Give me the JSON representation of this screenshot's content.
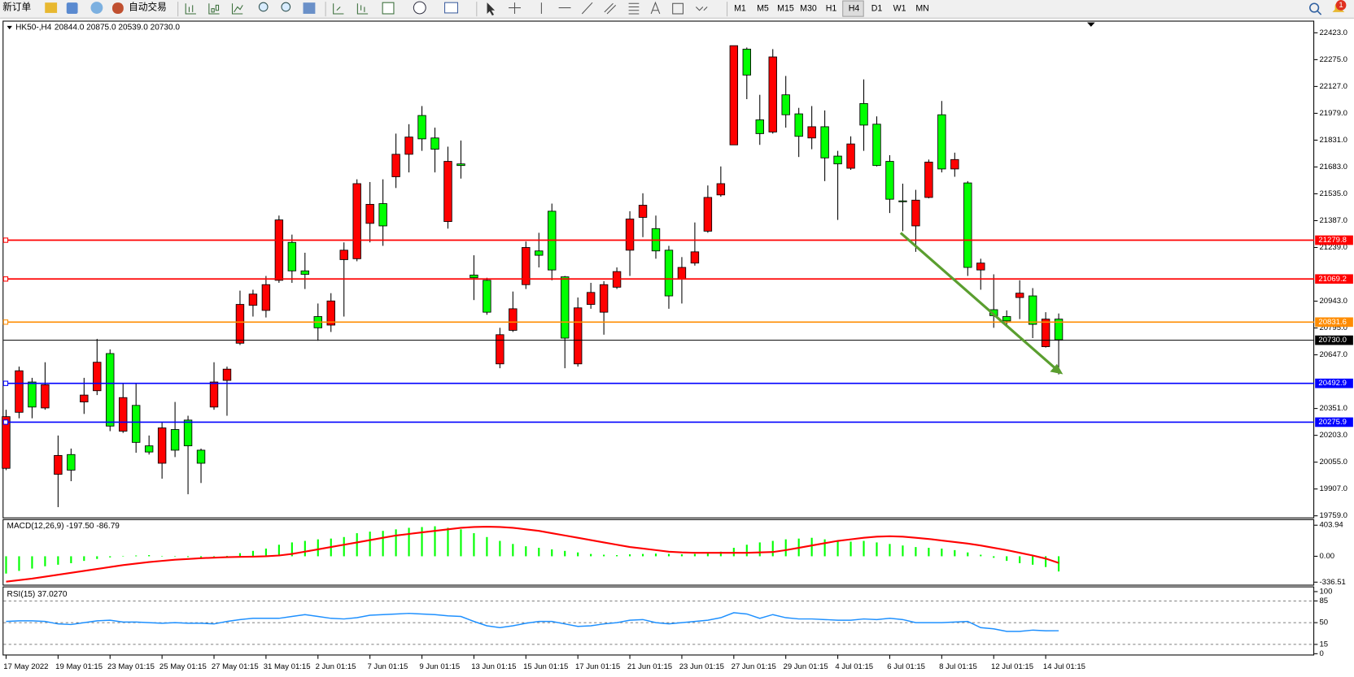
{
  "toolbar": {
    "new_order": "新订单",
    "auto_trading": "自动交易",
    "timeframes": [
      "M1",
      "M5",
      "M15",
      "M30",
      "H1",
      "H4",
      "D1",
      "W1",
      "MN"
    ],
    "notification_count": 1
  },
  "chart_data": [
    {
      "type": "candlestick",
      "title": "HK50-,H4",
      "subtitle": "20844.0 20875.0 20539.0 20730.0",
      "up_color": "#ff0000",
      "down_color": "#00ff00",
      "categories": [
        "17 May 2022",
        null,
        null,
        null,
        "19 May 01:15",
        null,
        null,
        null,
        "23 May 01:15",
        null,
        null,
        null,
        "25 May 01:15",
        null,
        null,
        null,
        "27 May 01:15",
        null,
        null,
        null,
        "31 May 01:15",
        null,
        null,
        null,
        "2 Jun 01:15",
        null,
        null,
        null,
        "7 Jun 01:15",
        null,
        null,
        null,
        "9 Jun 01:15",
        null,
        null,
        null,
        "13 Jun 01:15",
        null,
        null,
        null,
        "15 Jun 01:15",
        null,
        null,
        null,
        "17 Jun 01:15",
        null,
        null,
        null,
        "21 Jun 01:15",
        null,
        null,
        null,
        "23 Jun 01:15",
        null,
        null,
        null,
        "27 Jun 01:15",
        null,
        null,
        null,
        "29 Jun 01:15",
        null,
        null,
        null,
        "4 Jul 01:15",
        null,
        null,
        null,
        "6 Jul 01:15",
        null,
        null,
        null,
        "8 Jul 01:15",
        null,
        null,
        null,
        "12 Jul 01:15",
        null,
        null,
        null,
        "14 Jul 01:15",
        null
      ],
      "open": [
        20021,
        20330,
        20497,
        20354,
        19988,
        20097,
        20387,
        20449,
        20654,
        20226,
        20368,
        20145,
        20049,
        20235,
        20287,
        20121,
        20359,
        20506,
        20711,
        20920,
        20892,
        21058,
        21267,
        21110,
        20858,
        20811,
        21172,
        21177,
        21372,
        21481,
        21629,
        21753,
        21967,
        21843,
        21382,
        21700,
        21087,
        21058,
        20597,
        20782,
        21034,
        21220,
        21439,
        21077,
        20597,
        20925,
        20882,
        21020,
        21224,
        21405,
        21343,
        21224,
        21067,
        21153,
        21329,
        21529,
        21805,
        22333,
        21943,
        21876,
        22081,
        21976,
        21843,
        21905,
        21743,
        21676,
        22033,
        21919,
        21714,
        21496,
        21358,
        21515,
        21971,
        21672,
        21595,
        21115,
        20896,
        20858,
        20963,
        20972,
        20692,
        20844
      ],
      "high": [
        20344,
        20582,
        20520,
        20606,
        20202,
        20130,
        20520,
        20735,
        20677,
        20487,
        20487,
        20202,
        20273,
        20387,
        20311,
        20130,
        20606,
        20582,
        21001,
        21006,
        21082,
        21415,
        21310,
        21210,
        20930,
        20987,
        21267,
        21615,
        21600,
        21615,
        21867,
        21919,
        22019,
        21900,
        21795,
        21829,
        21196,
        21072,
        20796,
        20996,
        21272,
        21320,
        21481,
        21082,
        20963,
        21044,
        21053,
        21129,
        21439,
        21538,
        21415,
        21248,
        21186,
        21377,
        21581,
        21686,
        22352,
        22342,
        22081,
        22333,
        22185,
        22009,
        22019,
        21995,
        21772,
        21852,
        22166,
        21962,
        21748,
        21591,
        21557,
        21724,
        22047,
        21762,
        21605,
        21177,
        21091,
        20892,
        21058,
        21015,
        20882,
        20875
      ],
      "low": [
        20011,
        20297,
        20297,
        20344,
        19807,
        19950,
        20321,
        20425,
        20226,
        20216,
        20107,
        20097,
        19964,
        20083,
        19878,
        19940,
        20344,
        20311,
        20701,
        20858,
        20853,
        21044,
        21044,
        21010,
        20725,
        20773,
        20858,
        21163,
        21267,
        21248,
        21567,
        21653,
        21772,
        21653,
        21343,
        21619,
        20949,
        20868,
        20573,
        20773,
        21010,
        21129,
        21058,
        20573,
        20582,
        20901,
        20758,
        21010,
        21082,
        21296,
        21177,
        20901,
        20930,
        21139,
        21320,
        21519,
        21805,
        22057,
        21805,
        21867,
        21900,
        21738,
        21781,
        21605,
        21391,
        21667,
        21772,
        21686,
        21429,
        21329,
        21215,
        21510,
        21653,
        21629,
        21082,
        21006,
        20796,
        20806,
        20844,
        20739,
        20687,
        20539
      ],
      "close": [
        20306,
        20559,
        20359,
        20482,
        20092,
        20011,
        20425,
        20606,
        20254,
        20411,
        20164,
        20111,
        20244,
        20121,
        20145,
        20049,
        20497,
        20568,
        20925,
        20982,
        21034,
        21391,
        21110,
        21091,
        20796,
        20944,
        21224,
        21591,
        21477,
        21358,
        21753,
        21848,
        21838,
        21781,
        21714,
        21691,
        21072,
        20882,
        20758,
        20901,
        21239,
        21196,
        21115,
        20739,
        20906,
        20991,
        21034,
        21106,
        21396,
        21472,
        21220,
        20972,
        21129,
        21215,
        21515,
        21591,
        22352,
        22190,
        21867,
        22290,
        21971,
        21852,
        21905,
        21733,
        21700,
        21810,
        21914,
        21691,
        21505,
        21491,
        21500,
        21710,
        21672,
        21724,
        21129,
        21153,
        20863,
        20834,
        20987,
        20815,
        20844,
        20730
      ],
      "ylim": [
        19750,
        22485
      ],
      "yticks": [
        {
          "value": 22423,
          "label": "22423.0"
        },
        {
          "value": 22275,
          "label": "22275.0"
        },
        {
          "value": 22127,
          "label": "22127.0"
        },
        {
          "value": 21979,
          "label": "21979.0"
        },
        {
          "value": 21831,
          "label": "21831.0"
        },
        {
          "value": 21683,
          "label": "21683.0"
        },
        {
          "value": 21535,
          "label": "21535.0"
        },
        {
          "value": 21387,
          "label": "21387.0"
        },
        {
          "value": 21239,
          "label": "21239.0"
        },
        {
          "value": 20943,
          "label": "20943.0"
        },
        {
          "value": 20795,
          "label": "20795.0"
        },
        {
          "value": 20647,
          "label": "20647.0"
        },
        {
          "value": 20351,
          "label": "20351.0"
        },
        {
          "value": 20203,
          "label": "20203.0"
        },
        {
          "value": 20055,
          "label": "20055.0"
        },
        {
          "value": 19907,
          "label": "19907.0"
        },
        {
          "value": 19759,
          "label": "19759.0"
        }
      ],
      "levels": [
        {
          "value": 21279.8,
          "color": "#ff0000"
        },
        {
          "value": 21069.2,
          "color": "#ff0000"
        },
        {
          "value": 20831.6,
          "color": "#ff8c00"
        },
        {
          "value": 20730,
          "label": "20730.0",
          "color": "#000000"
        },
        {
          "value": 20492.9,
          "color": "#0000ff"
        },
        {
          "value": 20275.9,
          "color": "#0000ff"
        }
      ]
    },
    {
      "type": "macd",
      "title": "MACD(12,26,9) -197.50 -86.79",
      "series": [
        {
          "name": "MACD",
          "color": "#00ff00",
          "values": [
            -225,
            -190,
            -160,
            -130,
            -110,
            -90,
            -60,
            -35,
            -15,
            5,
            10,
            15,
            5,
            -5,
            -10,
            -15,
            -10,
            5,
            40,
            70,
            100,
            150,
            180,
            200,
            220,
            230,
            250,
            300,
            320,
            330,
            350,
            370,
            380,
            390,
            370,
            350,
            300,
            250,
            200,
            160,
            130,
            110,
            90,
            70,
            50,
            30,
            20,
            15,
            25,
            30,
            35,
            30,
            25,
            30,
            40,
            60,
            110,
            150,
            180,
            200,
            220,
            230,
            240,
            220,
            200,
            190,
            200,
            180,
            160,
            140,
            120,
            110,
            100,
            80,
            50,
            20,
            -20,
            -60,
            -90,
            -110,
            -140,
            -197.5
          ]
        },
        {
          "name": "Signal",
          "color": "#ff0000",
          "values": [
            -330,
            -310,
            -290,
            -265,
            -240,
            -215,
            -190,
            -165,
            -140,
            -115,
            -95,
            -75,
            -60,
            -45,
            -35,
            -25,
            -18,
            -12,
            -8,
            -5,
            0,
            10,
            30,
            60,
            90,
            120,
            150,
            180,
            210,
            240,
            270,
            290,
            310,
            330,
            350,
            370,
            380,
            385,
            380,
            370,
            350,
            330,
            300,
            270,
            240,
            210,
            180,
            150,
            120,
            100,
            80,
            60,
            50,
            45,
            45,
            45,
            45,
            45,
            50,
            55,
            80,
            110,
            140,
            170,
            200,
            220,
            240,
            255,
            260,
            255,
            240,
            225,
            205,
            185,
            165,
            140,
            110,
            80,
            45,
            10,
            -30,
            -86.79
          ]
        }
      ],
      "ylim": [
        -370,
        471
      ],
      "yticks": [
        403.94,
        {
          "value": 0,
          "label": "0.00"
        },
        -336.51
      ]
    },
    {
      "type": "line",
      "title": "RSI(15) 37.0270",
      "series": [
        {
          "name": "RSI",
          "color": "#1e90ff",
          "values": [
            52,
            53,
            53,
            52,
            48,
            47,
            50,
            53,
            54,
            51,
            51,
            50,
            49,
            50,
            49,
            49,
            48,
            52,
            55,
            57,
            57,
            57,
            60,
            63,
            60,
            57,
            56,
            58,
            62,
            63,
            64,
            65,
            64,
            63,
            61,
            60,
            52,
            45,
            42,
            45,
            49,
            52,
            52,
            48,
            44,
            45,
            48,
            50,
            54,
            55,
            50,
            48,
            50,
            52,
            54,
            58,
            66,
            64,
            57,
            63,
            58,
            56,
            56,
            55,
            54,
            54,
            56,
            55,
            57,
            55,
            50,
            50,
            50,
            51,
            52,
            42,
            40,
            36,
            36,
            38,
            37,
            37.027
          ]
        }
      ],
      "ylim": [
        0,
        100
      ],
      "yticks": [
        100,
        85,
        50,
        15,
        0
      ],
      "grid": "dashed"
    }
  ]
}
